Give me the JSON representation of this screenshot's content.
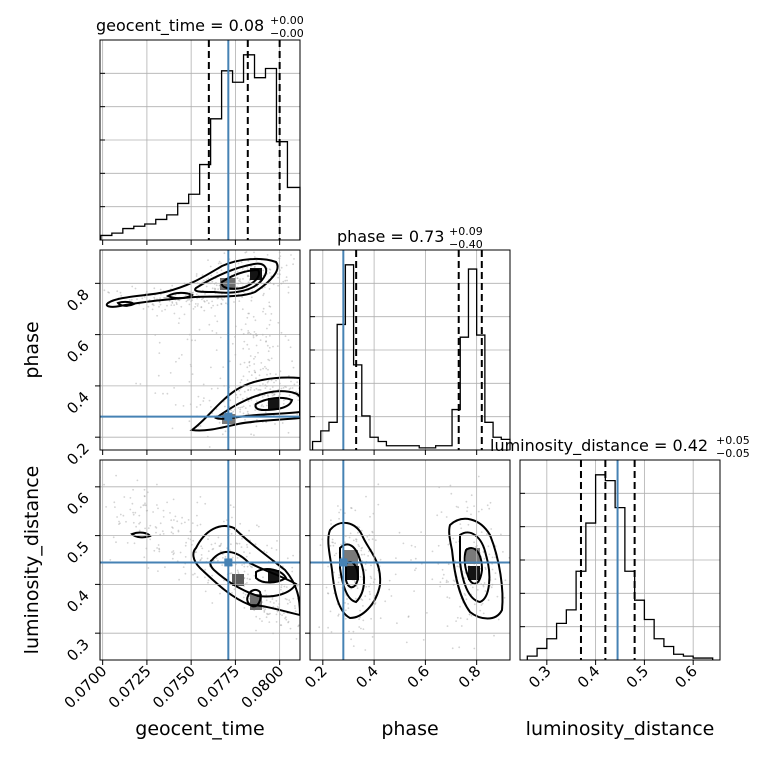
{
  "chart_data": {
    "type": "corner",
    "parameters": [
      "geocent_time",
      "phase",
      "luminosity_distance"
    ],
    "titles": [
      {
        "param": "geocent_time",
        "label": "geocent_time = 0.08",
        "plus": "+0.00",
        "minus": "−0.00"
      },
      {
        "param": "phase",
        "label": "phase = 0.73",
        "plus": "+0.09",
        "minus": "−0.40"
      },
      {
        "param": "luminosity_distance",
        "label": "luminosity_distance = 0.42",
        "plus": "+0.05",
        "minus": "−0.05"
      }
    ],
    "ranges": {
      "geocent_time": [
        0.06985,
        0.08115
      ],
      "phase": [
        0.15,
        0.93
      ],
      "luminosity_distance": [
        0.245,
        0.655
      ]
    },
    "ticks": {
      "geocent_time": [
        0.07,
        0.0725,
        0.075,
        0.0775,
        0.08
      ],
      "phase": [
        0.2,
        0.4,
        0.6,
        0.8
      ],
      "luminosity_distance": [
        0.3,
        0.4,
        0.5,
        0.6
      ]
    },
    "tick_labels": {
      "geocent_time": [
        "0.0700",
        "0.0725",
        "0.0750",
        "0.0775",
        "0.0800"
      ],
      "phase_x": [
        "0.2",
        "0.4",
        "0.6",
        "0.8"
      ],
      "phase_y": [
        "0.2",
        "0.4",
        "0.6",
        "0.8"
      ],
      "luminosity_distance_x": [
        "0.3",
        "0.4",
        "0.5",
        "0.6"
      ],
      "luminosity_distance_y": [
        "0.3",
        "0.4",
        "0.5",
        "0.6"
      ]
    },
    "truths": {
      "geocent_time": 0.0771,
      "phase": 0.28,
      "luminosity_distance": 0.445
    },
    "quantiles": {
      "geocent_time": [
        0.076,
        0.0782,
        0.08
      ],
      "phase": [
        0.33,
        0.73,
        0.82
      ],
      "luminosity_distance": [
        0.37,
        0.42,
        0.48
      ]
    },
    "histograms": {
      "geocent_time": {
        "edges": [
          0.0699,
          0.07052,
          0.07114,
          0.07176,
          0.07238,
          0.073,
          0.07362,
          0.07424,
          0.07486,
          0.07548,
          0.0761,
          0.07672,
          0.07734,
          0.07796,
          0.07858,
          0.0792,
          0.07982,
          0.08044,
          0.08115
        ],
        "counts": [
          2,
          3,
          5,
          6,
          7,
          9,
          11,
          16,
          20,
          33,
          53,
          74,
          69,
          81,
          71,
          75,
          43,
          23
        ]
      },
      "phase": {
        "edges": [
          0.16,
          0.192,
          0.224,
          0.256,
          0.288,
          0.32,
          0.352,
          0.384,
          0.416,
          0.448,
          0.48,
          0.512,
          0.544,
          0.576,
          0.608,
          0.64,
          0.672,
          0.704,
          0.736,
          0.768,
          0.8,
          0.832,
          0.864,
          0.896,
          0.93
        ],
        "counts": [
          4,
          9,
          13,
          59,
          87,
          40,
          16,
          6,
          4,
          2,
          2,
          2,
          2,
          1,
          1,
          2,
          2,
          19,
          53,
          85,
          54,
          13,
          6,
          5
        ]
      },
      "luminosity_distance": {
        "edges": [
          0.26,
          0.28,
          0.3,
          0.32,
          0.34,
          0.36,
          0.38,
          0.4,
          0.42,
          0.44,
          0.46,
          0.48,
          0.5,
          0.52,
          0.54,
          0.56,
          0.58,
          0.6,
          0.62,
          0.64
        ],
        "counts": [
          2,
          6,
          11,
          19,
          26,
          46,
          71,
          96,
          93,
          79,
          46,
          31,
          21,
          11,
          7,
          3,
          2,
          1,
          1
        ]
      }
    },
    "axis_labels": {
      "x": [
        "geocent_time",
        "phase",
        "luminosity_distance"
      ],
      "y": [
        "phase",
        "luminosity_distance"
      ]
    },
    "colors": {
      "truth": "#4682b4",
      "quantile": "#000000",
      "samples": "#9e9e9e",
      "density_dark": "#141414",
      "density_light": "#bdbdbd"
    },
    "grid": true
  }
}
